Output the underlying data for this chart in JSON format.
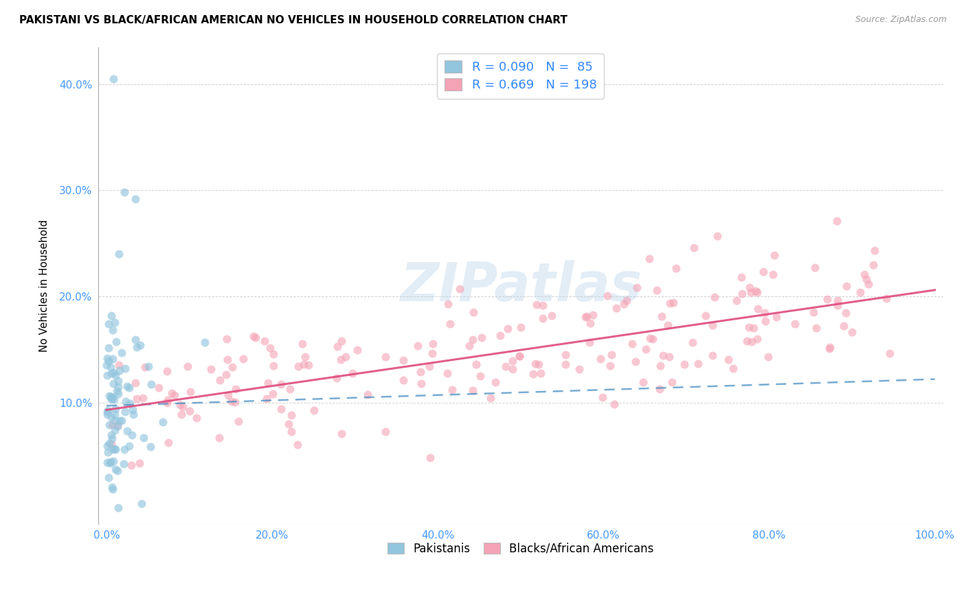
{
  "title": "PAKISTANI VS BLACK/AFRICAN AMERICAN NO VEHICLES IN HOUSEHOLD CORRELATION CHART",
  "source": "Source: ZipAtlas.com",
  "ylabel": "No Vehicles in Household",
  "legend_label1": "Pakistanis",
  "legend_label2": "Blacks/African Americans",
  "R1": 0.09,
  "N1": 85,
  "R2": 0.669,
  "N2": 198,
  "blue_color": "#92c5de",
  "pink_color": "#f4a3b5",
  "blue_line_color": "#4a90c4",
  "pink_line_color": "#e05080",
  "watermark": "ZIPatlas",
  "xlim": [
    0.0,
    1.0
  ],
  "ylim": [
    0.0,
    0.42
  ],
  "xticks": [
    0.0,
    0.2,
    0.4,
    0.6,
    0.8,
    1.0
  ],
  "yticks": [
    0.1,
    0.2,
    0.3,
    0.4
  ],
  "xtick_labels": [
    "0.0%",
    "20.0%",
    "40.0%",
    "60.0%",
    "80.0%",
    "100.0%"
  ],
  "ytick_labels": [
    "10.0%",
    "20.0%",
    "30.0%",
    "40.0%"
  ],
  "tick_color": "#4499ff",
  "blue_seed": 77,
  "pink_seed": 99
}
